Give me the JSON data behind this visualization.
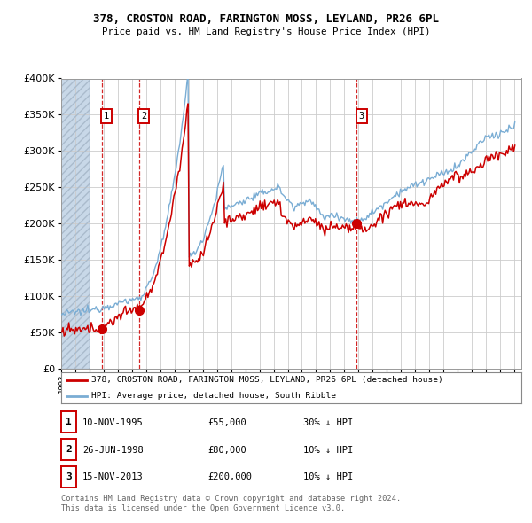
{
  "title1": "378, CROSTON ROAD, FARINGTON MOSS, LEYLAND, PR26 6PL",
  "title2": "Price paid vs. HM Land Registry's House Price Index (HPI)",
  "legend_red": "378, CROSTON ROAD, FARINGTON MOSS, LEYLAND, PR26 6PL (detached house)",
  "legend_blue": "HPI: Average price, detached house, South Ribble",
  "footer": "Contains HM Land Registry data © Crown copyright and database right 2024.\nThis data is licensed under the Open Government Licence v3.0.",
  "sale_years": [
    1995.86,
    1998.49,
    2013.87
  ],
  "sale_prices": [
    55000,
    80000,
    200000
  ],
  "sale_labels": [
    "1",
    "2",
    "3"
  ],
  "table_rows": [
    [
      "1",
      "10-NOV-1995",
      "£55,000",
      "30% ↓ HPI"
    ],
    [
      "2",
      "26-JUN-1998",
      "£80,000",
      "10% ↓ HPI"
    ],
    [
      "3",
      "15-NOV-2013",
      "£200,000",
      "10% ↓ HPI"
    ]
  ],
  "hatch_color": "#c8d8e8",
  "red_color": "#cc0000",
  "blue_color": "#7aadd4",
  "grid_color": "#cccccc",
  "plot_bg": "#ffffff",
  "ylim": [
    0,
    400000
  ],
  "yticks": [
    0,
    50000,
    100000,
    150000,
    200000,
    250000,
    300000,
    350000,
    400000
  ],
  "xmin": 1993.0,
  "xmax": 2025.5
}
